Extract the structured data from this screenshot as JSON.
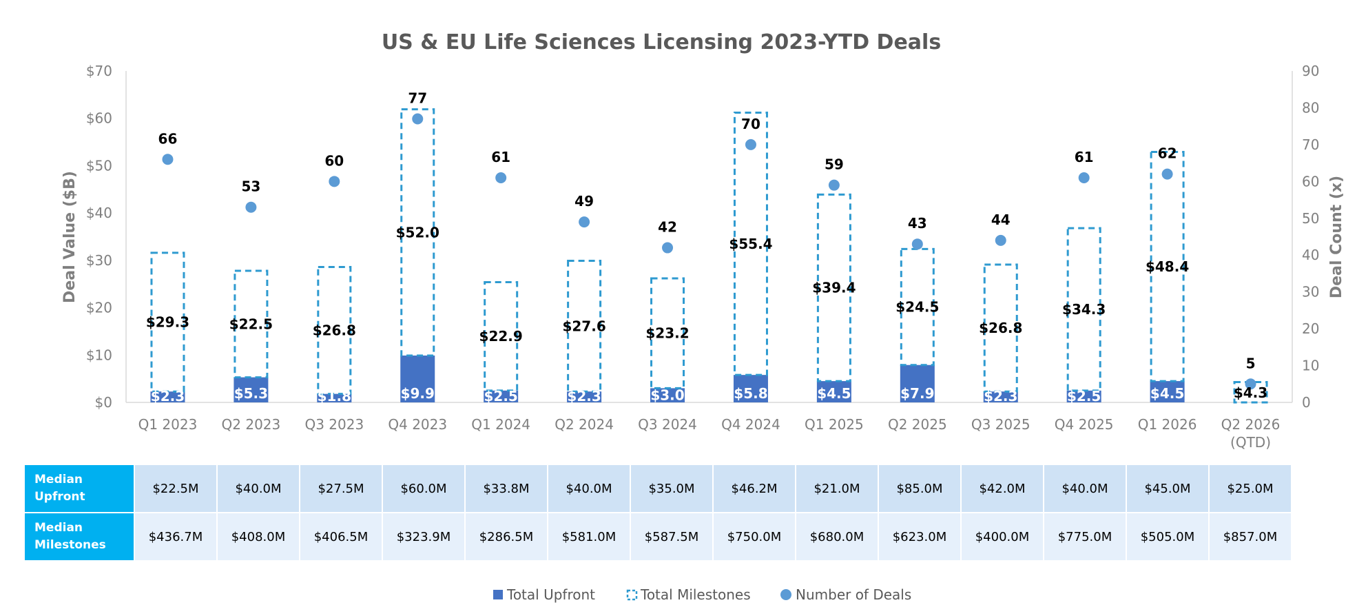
{
  "chart_data": {
    "type": "bar",
    "title": "US & EU Life Sciences Licensing 2023-YTD Deals",
    "ylabel": "Deal Value ($B)",
    "y2label": "Deal Count (x)",
    "ylim": [
      0,
      70
    ],
    "y2lim": [
      0,
      90
    ],
    "yticks": [
      "$0",
      "$10",
      "$20",
      "$30",
      "$40",
      "$50",
      "$60",
      "$70"
    ],
    "y2ticks": [
      "0",
      "10",
      "20",
      "30",
      "40",
      "50",
      "60",
      "70",
      "80",
      "90"
    ],
    "categories": [
      "Q1 2023",
      "Q2 2023",
      "Q3 2023",
      "Q4 2023",
      "Q1 2024",
      "Q2 2024",
      "Q3 2024",
      "Q4 2024",
      "Q1 2025",
      "Q2 2025",
      "Q3 2025",
      "Q4 2025",
      "Q1 2026",
      "Q2 2026 (QTD)"
    ],
    "category_lines": [
      [
        "Q1 2023"
      ],
      [
        "Q2 2023"
      ],
      [
        "Q3 2023"
      ],
      [
        "Q4 2023"
      ],
      [
        "Q1 2024"
      ],
      [
        "Q2 2024"
      ],
      [
        "Q3 2024"
      ],
      [
        "Q4 2024"
      ],
      [
        "Q1 2025"
      ],
      [
        "Q2 2025"
      ],
      [
        "Q3 2025"
      ],
      [
        "Q4 2025"
      ],
      [
        "Q1 2026"
      ],
      [
        "Q2 2026",
        "(QTD)"
      ]
    ],
    "series": [
      {
        "name": "Total Upfront",
        "type": "stacked-bar",
        "color": "#4472c4",
        "values": [
          2.3,
          5.3,
          1.8,
          9.9,
          2.5,
          2.3,
          3.0,
          5.8,
          4.5,
          7.9,
          2.3,
          2.5,
          4.5,
          0.0
        ],
        "labels": [
          "$2.3",
          "$5.3",
          "$1.8",
          "$9.9",
          "$2.5",
          "$2.3",
          "$3.0",
          "$5.8",
          "$4.5",
          "$7.9",
          "$2.3",
          "$2.5",
          "$4.5",
          ""
        ]
      },
      {
        "name": "Total Milestones",
        "type": "stacked-bar-dashed",
        "color": "#2e9ad0",
        "values": [
          29.3,
          22.5,
          26.8,
          52.0,
          22.9,
          27.6,
          23.2,
          55.4,
          39.4,
          24.5,
          26.8,
          34.3,
          48.4,
          4.3
        ],
        "labels": [
          "$29.3",
          "$22.5",
          "$26.8",
          "$52.0",
          "$22.9",
          "$27.6",
          "$23.2",
          "$55.4",
          "$39.4",
          "$24.5",
          "$26.8",
          "$34.3",
          "$48.4",
          "$4.3"
        ]
      },
      {
        "name": "Number of Deals",
        "type": "scatter",
        "axis": "secondary",
        "color": "#5b9bd5",
        "values": [
          66,
          53,
          60,
          77,
          61,
          49,
          42,
          70,
          59,
          43,
          44,
          61,
          62,
          5
        ],
        "labels": [
          "66",
          "53",
          "60",
          "77",
          "61",
          "49",
          "42",
          "70",
          "59",
          "43",
          "44",
          "61",
          "62",
          "5"
        ]
      }
    ],
    "legend": [
      "Total Upfront",
      "Total Milestones",
      "Number of Deals"
    ],
    "legend_position": "bottom"
  },
  "table": {
    "rows": [
      {
        "label_lines": [
          "Median",
          "Upfront"
        ],
        "values": [
          "$22.5M",
          "$40.0M",
          "$27.5M",
          "$60.0M",
          "$33.8M",
          "$40.0M",
          "$35.0M",
          "$46.2M",
          "$21.0M",
          "$85.0M",
          "$42.0M",
          "$40.0M",
          "$45.0M",
          "$25.0M"
        ]
      },
      {
        "label_lines": [
          "Median",
          "Milestones"
        ],
        "values": [
          "$436.7M",
          "$408.0M",
          "$406.5M",
          "$323.9M",
          "$286.5M",
          "$581.0M",
          "$587.5M",
          "$750.0M",
          "$680.0M",
          "$623.0M",
          "$400.0M",
          "$775.0M",
          "$505.0M",
          "$857.0M"
        ]
      }
    ]
  },
  "colors": {
    "upfront": "#4472c4",
    "milestones_border": "#2e9ad0",
    "deals_marker": "#5b9bd5",
    "table_header": "#00b0f0"
  }
}
